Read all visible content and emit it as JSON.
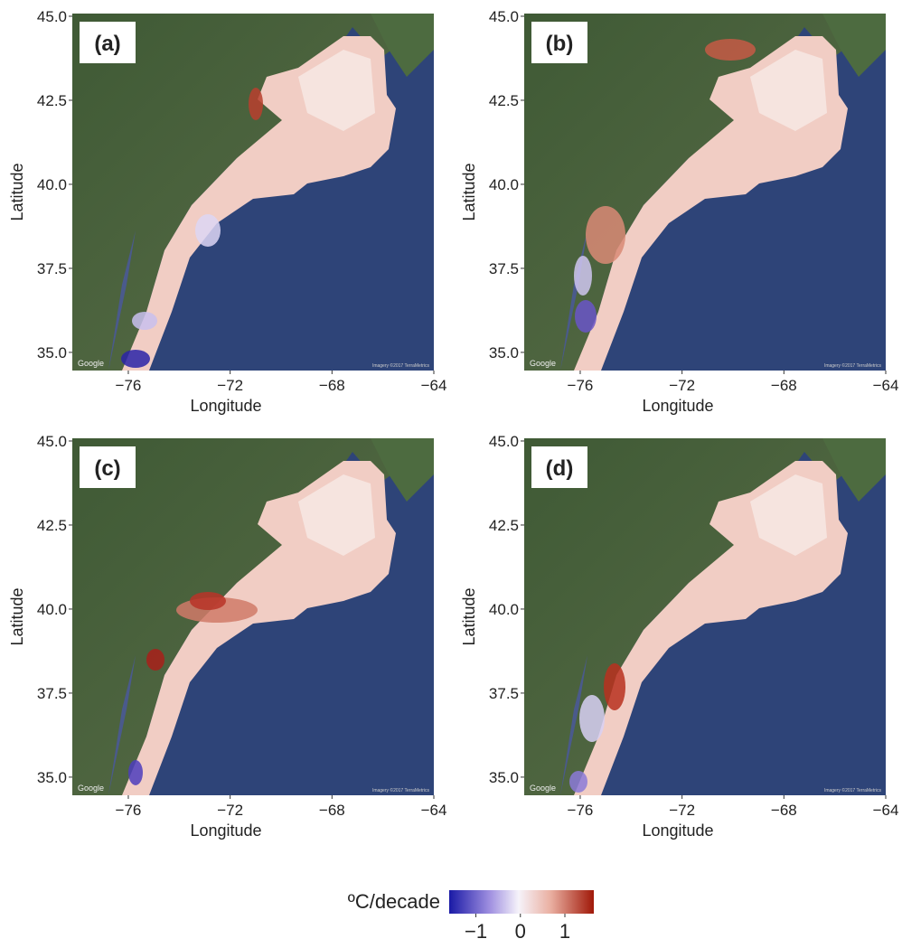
{
  "panels": [
    {
      "label": "(a)",
      "google": "Google",
      "imagery": "Imagery ©2017 TerraMetrics"
    },
    {
      "label": "(b)",
      "google": "Google",
      "imagery": "Imagery ©2017 TerraMetrics"
    },
    {
      "label": "(c)",
      "google": "Google",
      "imagery": "Imagery ©2017 TerraMetrics"
    },
    {
      "label": "(d)",
      "google": "Google",
      "imagery": "Imagery ©2017 TerraMetrics"
    }
  ],
  "axes": {
    "x_title": "Longitude",
    "y_title": "Latitude",
    "xlim": [
      -78.2,
      -64
    ],
    "ylim": [
      34.46,
      45.08
    ],
    "xticks": [
      {
        "value": -76,
        "label": "−76"
      },
      {
        "value": -72,
        "label": "−72"
      },
      {
        "value": -68,
        "label": "−68"
      },
      {
        "value": -64,
        "label": "−64"
      }
    ],
    "yticks": [
      {
        "value": 35,
        "label": "35.0"
      },
      {
        "value": 37.5,
        "label": "37.5"
      },
      {
        "value": 40,
        "label": "40.0"
      },
      {
        "value": 42.5,
        "label": "42.5"
      },
      {
        "value": 45,
        "label": "45.0"
      }
    ]
  },
  "colorbar": {
    "label": "ºC/decade",
    "range": [
      -1.6,
      1.65
    ],
    "ticks": [
      {
        "value": -1,
        "label": "−1"
      },
      0,
      1
    ]
  }
}
